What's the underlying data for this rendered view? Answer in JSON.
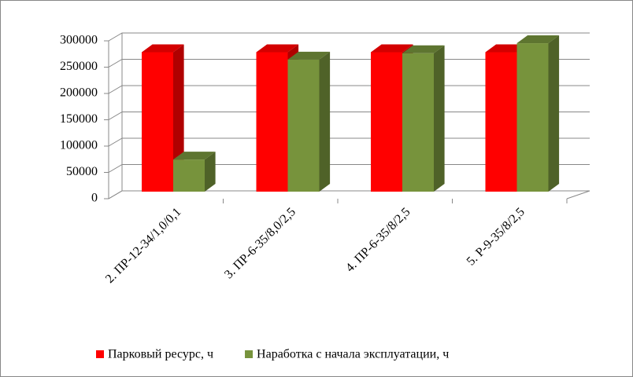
{
  "chart_data": {
    "type": "bar3d",
    "categories": [
      "2. ПР-12-34/1,0/0,1",
      "3. ПР-6-35/8,0/2,5",
      "4. ПР-6-35/8/2,5",
      "5. Р-9-35/8/2,5"
    ],
    "series": [
      {
        "name": "Парковый ресурс, ч",
        "color": "#ff0000",
        "side": "#b00000",
        "top": "#d40000",
        "values": [
          265000,
          265000,
          265000,
          265000
        ]
      },
      {
        "name": "Наработка с начала эксплуатации, ч",
        "color": "#77933c",
        "side": "#4f6228",
        "top": "#5e7530",
        "values": [
          61000,
          251000,
          263000,
          282000
        ]
      }
    ],
    "ylim": [
      0,
      300000
    ],
    "yticks": [
      0,
      50000,
      100000,
      150000,
      200000,
      250000,
      300000
    ],
    "grid": true
  }
}
